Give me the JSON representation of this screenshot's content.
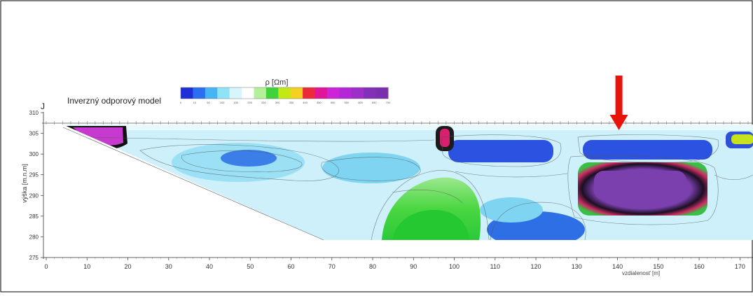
{
  "figure": {
    "corner_letter": "J",
    "model_title": "Inverzný odporový model",
    "colorbar": {
      "label": "ρ [Ωm]",
      "ticks": [
        "0",
        "10",
        "50",
        "100",
        "150",
        "200",
        "250",
        "300",
        "350",
        "400",
        "450",
        "500",
        "550",
        "600",
        "650",
        "700"
      ],
      "colors": [
        "#1e2fd6",
        "#2b6ff0",
        "#46b4f5",
        "#8ee3f8",
        "#d6f6fb",
        "#ffffff",
        "#b4f09a",
        "#3fd23a",
        "#c4e814",
        "#f4d020",
        "#ee2a3a",
        "#e0159a",
        "#cc24d6",
        "#b327d8",
        "#9d2ec8",
        "#8330b8",
        "#7a2fae"
      ]
    },
    "y_axis": {
      "label": "výška [m.n.m]",
      "ticks": [
        "310",
        "305",
        "300",
        "295",
        "290",
        "285",
        "280",
        "275"
      ],
      "range": [
        275,
        310
      ]
    },
    "x_axis": {
      "label": "vzdialenosť [m]",
      "ticks": [
        "0",
        "10",
        "20",
        "30",
        "40",
        "50",
        "60",
        "70",
        "80",
        "90",
        "100",
        "110",
        "120",
        "130",
        "140",
        "150",
        "160",
        "170"
      ],
      "range": [
        0,
        172
      ]
    },
    "arrow_position_m": 140,
    "colors": {
      "arrow": "#e8140a",
      "background_light": "#cdf0fa",
      "anomaly_high": "#7b3fae",
      "anomaly_low": "#1f3fd0"
    }
  }
}
